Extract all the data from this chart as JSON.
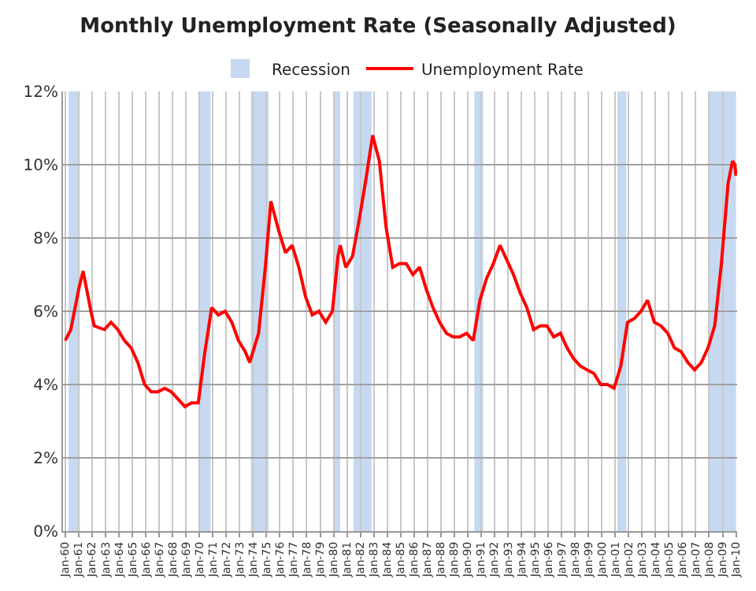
{
  "chart_data": {
    "type": "line",
    "title": "Monthly Unemployment Rate (Seasonally Adjusted)",
    "x": [
      "1960-01",
      "1960-06",
      "1961-01",
      "1961-05",
      "1961-12",
      "1962-03",
      "1962-12",
      "1963-06",
      "1963-12",
      "1964-06",
      "1964-12",
      "1965-06",
      "1965-12",
      "1966-06",
      "1966-12",
      "1967-06",
      "1967-12",
      "1968-06",
      "1968-12",
      "1969-06",
      "1969-12",
      "1970-06",
      "1970-12",
      "1971-06",
      "1971-12",
      "1972-06",
      "1972-12",
      "1973-06",
      "1973-10",
      "1974-06",
      "1974-12",
      "1975-05",
      "1975-12",
      "1976-06",
      "1976-12",
      "1977-06",
      "1977-12",
      "1978-06",
      "1978-12",
      "1979-06",
      "1979-12",
      "1980-05",
      "1980-07",
      "1980-12",
      "1981-06",
      "1981-12",
      "1982-06",
      "1982-12",
      "1983-06",
      "1983-12",
      "1984-06",
      "1984-12",
      "1985-06",
      "1985-12",
      "1986-06",
      "1986-12",
      "1987-06",
      "1987-12",
      "1988-06",
      "1988-12",
      "1989-06",
      "1989-12",
      "1990-06",
      "1990-12",
      "1991-06",
      "1991-12",
      "1992-06",
      "1992-12",
      "1993-06",
      "1993-12",
      "1994-06",
      "1994-12",
      "1995-06",
      "1995-12",
      "1996-06",
      "1996-12",
      "1997-06",
      "1997-12",
      "1998-06",
      "1998-12",
      "1999-06",
      "1999-12",
      "2000-06",
      "2000-12",
      "2001-06",
      "2001-12",
      "2002-06",
      "2002-12",
      "2003-06",
      "2003-12",
      "2004-06",
      "2004-12",
      "2005-06",
      "2005-12",
      "2006-06",
      "2006-12",
      "2007-06",
      "2007-12",
      "2008-06",
      "2008-12",
      "2009-06",
      "2009-10",
      "2009-12",
      "2010-01"
    ],
    "series": [
      {
        "name": "Unemployment Rate",
        "color": "#ff0000",
        "values": [
          5.2,
          5.5,
          6.6,
          7.1,
          6.0,
          5.6,
          5.5,
          5.7,
          5.5,
          5.2,
          5.0,
          4.6,
          4.0,
          3.8,
          3.8,
          3.9,
          3.8,
          3.6,
          3.4,
          3.5,
          3.5,
          4.9,
          6.1,
          5.9,
          6.0,
          5.7,
          5.2,
          4.9,
          4.6,
          5.4,
          7.2,
          9.0,
          8.2,
          7.6,
          7.8,
          7.2,
          6.4,
          5.9,
          6.0,
          5.7,
          6.0,
          7.5,
          7.8,
          7.2,
          7.5,
          8.5,
          9.6,
          10.8,
          10.1,
          8.3,
          7.2,
          7.3,
          7.3,
          7.0,
          7.2,
          6.6,
          6.1,
          5.7,
          5.4,
          5.3,
          5.3,
          5.4,
          5.2,
          6.3,
          6.9,
          7.3,
          7.8,
          7.4,
          7.0,
          6.5,
          6.1,
          5.5,
          5.6,
          5.6,
          5.3,
          5.4,
          5.0,
          4.7,
          4.5,
          4.4,
          4.3,
          4.0,
          4.0,
          3.9,
          4.5,
          5.7,
          5.8,
          6.0,
          6.3,
          5.7,
          5.6,
          5.4,
          5.0,
          4.9,
          4.6,
          4.4,
          4.6,
          5.0,
          5.6,
          7.3,
          9.5,
          10.1,
          10.0,
          9.7
        ]
      }
    ],
    "bands": [
      {
        "axis": "x",
        "from": "1960-04",
        "to": "1961-02",
        "label": "Recession",
        "color": "#c6d9f1"
      },
      {
        "axis": "x",
        "from": "1969-12",
        "to": "1970-11",
        "color": "#c6d9f1"
      },
      {
        "axis": "x",
        "from": "1973-11",
        "to": "1975-03",
        "color": "#c6d9f1"
      },
      {
        "axis": "x",
        "from": "1980-01",
        "to": "1980-07",
        "color": "#c6d9f1"
      },
      {
        "axis": "x",
        "from": "1981-07",
        "to": "1982-11",
        "color": "#c6d9f1"
      },
      {
        "axis": "x",
        "from": "1990-07",
        "to": "1991-03",
        "color": "#c6d9f1"
      },
      {
        "axis": "x",
        "from": "2001-03",
        "to": "2001-11",
        "color": "#c6d9f1"
      },
      {
        "axis": "x",
        "from": "2007-12",
        "to": "2010-01",
        "color": "#c6d9f1"
      }
    ],
    "xlim": [
      "1959-11",
      "2010-02"
    ],
    "xticks": [
      {
        "value": "1960-01",
        "label": "Jan-60"
      },
      {
        "value": "1961-01",
        "label": "Jan-61"
      },
      {
        "value": "1962-01",
        "label": "Jan-62"
      },
      {
        "value": "1963-01",
        "label": "Jan-63"
      },
      {
        "value": "1964-01",
        "label": "Jan-64"
      },
      {
        "value": "1965-01",
        "label": "Jan-65"
      },
      {
        "value": "1966-01",
        "label": "Jan-66"
      },
      {
        "value": "1967-01",
        "label": "Jan-67"
      },
      {
        "value": "1968-01",
        "label": "Jan-68"
      },
      {
        "value": "1969-01",
        "label": "Jan-69"
      },
      {
        "value": "1970-01",
        "label": "Jan-70"
      },
      {
        "value": "1971-01",
        "label": "Jan-71"
      },
      {
        "value": "1972-01",
        "label": "Jan-72"
      },
      {
        "value": "1973-01",
        "label": "Jan-73"
      },
      {
        "value": "1974-01",
        "label": "Jan-74"
      },
      {
        "value": "1975-01",
        "label": "Jan-75"
      },
      {
        "value": "1976-01",
        "label": "Jan-76"
      },
      {
        "value": "1977-01",
        "label": "Jan-77"
      },
      {
        "value": "1978-01",
        "label": "Jan-78"
      },
      {
        "value": "1979-01",
        "label": "Jan-79"
      },
      {
        "value": "1980-01",
        "label": "Jan-80"
      },
      {
        "value": "1981-01",
        "label": "Jan-81"
      },
      {
        "value": "1982-01",
        "label": "Jan-82"
      },
      {
        "value": "1983-01",
        "label": "Jan-83"
      },
      {
        "value": "1984-01",
        "label": "Jan-84"
      },
      {
        "value": "1985-01",
        "label": "Jan-85"
      },
      {
        "value": "1986-01",
        "label": "Jan-86"
      },
      {
        "value": "1987-01",
        "label": "Jan-87"
      },
      {
        "value": "1988-01",
        "label": "Jan-88"
      },
      {
        "value": "1989-01",
        "label": "Jan-89"
      },
      {
        "value": "1990-01",
        "label": "Jan-90"
      },
      {
        "value": "1991-01",
        "label": "Jan-91"
      },
      {
        "value": "1992-01",
        "label": "Jan-92"
      },
      {
        "value": "1993-01",
        "label": "Jan-93"
      },
      {
        "value": "1994-01",
        "label": "Jan-94"
      },
      {
        "value": "1995-01",
        "label": "Jan-95"
      },
      {
        "value": "1996-01",
        "label": "Jan-96"
      },
      {
        "value": "1997-01",
        "label": "Jan-97"
      },
      {
        "value": "1998-01",
        "label": "Jan-98"
      },
      {
        "value": "1999-01",
        "label": "Jan-99"
      },
      {
        "value": "2000-01",
        "label": "Jan-00"
      },
      {
        "value": "2001-01",
        "label": "Jan-01"
      },
      {
        "value": "2002-01",
        "label": "Jan-02"
      },
      {
        "value": "2003-01",
        "label": "Jan-03"
      },
      {
        "value": "2004-01",
        "label": "Jan-04"
      },
      {
        "value": "2005-01",
        "label": "Jan-05"
      },
      {
        "value": "2006-01",
        "label": "Jan-06"
      },
      {
        "value": "2007-01",
        "label": "Jan-07"
      },
      {
        "value": "2008-01",
        "label": "Jan-08"
      },
      {
        "value": "2009-01",
        "label": "Jan-09"
      },
      {
        "value": "2010-01",
        "label": "Jan-10"
      }
    ],
    "ylim": [
      0,
      12
    ],
    "yticks": [
      {
        "value": 0,
        "label": "0%"
      },
      {
        "value": 2,
        "label": "2%"
      },
      {
        "value": 4,
        "label": "4%"
      },
      {
        "value": 6,
        "label": "6%"
      },
      {
        "value": 8,
        "label": "8%"
      },
      {
        "value": 10,
        "label": "10%"
      },
      {
        "value": 12,
        "label": "12%"
      }
    ],
    "grid": true,
    "legend": "top",
    "marker": "none",
    "line_style": "solid"
  }
}
